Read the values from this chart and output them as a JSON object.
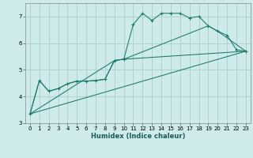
{
  "xlabel": "Humidex (Indice chaleur)",
  "bg_color": "#ceeaea",
  "grid_color": "#aacece",
  "line_color": "#1a7a6a",
  "xlim": [
    -0.5,
    23.5
  ],
  "ylim": [
    3.0,
    7.5
  ],
  "yticks": [
    3,
    4,
    5,
    6,
    7
  ],
  "xticks": [
    0,
    1,
    2,
    3,
    4,
    5,
    6,
    7,
    8,
    9,
    10,
    11,
    12,
    13,
    14,
    15,
    16,
    17,
    18,
    19,
    20,
    21,
    22,
    23
  ],
  "line1_x": [
    0,
    1,
    2,
    3,
    4,
    5,
    6,
    7,
    8,
    9,
    10,
    11,
    12,
    13,
    14,
    15,
    16,
    17,
    18,
    19,
    20,
    21,
    22,
    23
  ],
  "line1_y": [
    3.35,
    4.6,
    4.2,
    4.3,
    4.48,
    4.58,
    4.58,
    4.6,
    4.65,
    5.35,
    5.4,
    6.7,
    7.12,
    6.85,
    7.12,
    7.12,
    7.12,
    6.95,
    7.0,
    6.65,
    6.45,
    6.3,
    5.75,
    5.7
  ],
  "line2_x": [
    0,
    1,
    2,
    3,
    4,
    5,
    6,
    7,
    8,
    9,
    10,
    23
  ],
  "line2_y": [
    3.35,
    4.6,
    4.2,
    4.3,
    4.48,
    4.58,
    4.58,
    4.6,
    4.65,
    5.35,
    5.4,
    5.7
  ],
  "line3_x": [
    0,
    23
  ],
  "line3_y": [
    3.35,
    5.7
  ],
  "line4_x": [
    0,
    9,
    10,
    19,
    20,
    23
  ],
  "line4_y": [
    3.35,
    5.35,
    5.4,
    6.65,
    6.45,
    5.7
  ]
}
